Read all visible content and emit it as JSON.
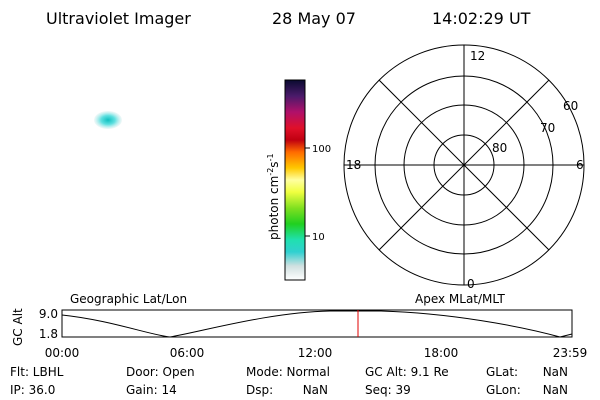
{
  "header": {
    "title": "Ultraviolet Imager",
    "date": "28 May 07",
    "time": "14:02:29 UT"
  },
  "colorbar": {
    "unit": {
      "base": "photon cm",
      "exp1": "-2",
      "mid": "s",
      "exp2": "-1"
    },
    "ticks": [
      "100",
      "10"
    ]
  },
  "polar": {
    "mlt_labels": [
      "12",
      "18",
      "6",
      "0"
    ],
    "lat_labels": [
      "60",
      "70",
      "80"
    ]
  },
  "timeline": {
    "left_title": "Geographic Lat/Lon",
    "right_title": "Apex MLat/MLT",
    "y_label": "GC Alt",
    "y_ticks": [
      "9.0",
      "1.8"
    ],
    "x_ticks": [
      "00:00",
      "06:00",
      "12:00",
      "18:00",
      "23:59"
    ]
  },
  "info": {
    "row1": [
      "Flt: LBHL",
      "Door: Open",
      "Mode: Normal",
      "GC Alt: 9.1 Re",
      "GLat:",
      "NaN"
    ],
    "row2": [
      "IP: 36.0",
      "Gain: 14",
      "Dsp:",
      "NaN",
      "Seq: 39",
      "GLon:",
      "NaN"
    ]
  }
}
